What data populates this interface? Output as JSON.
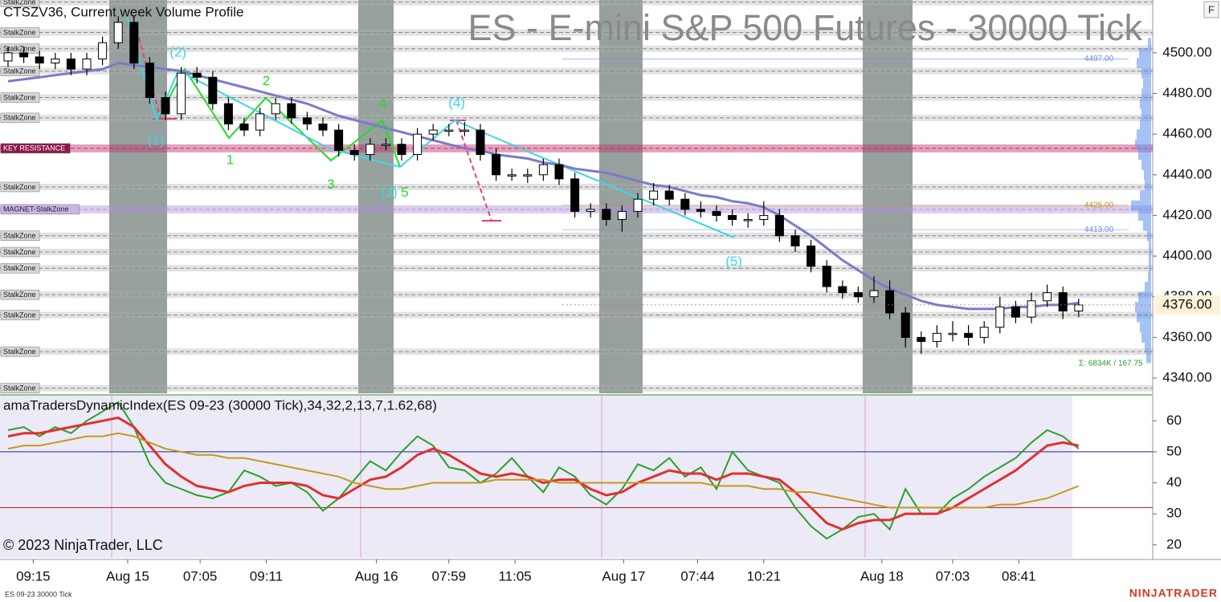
{
  "chart_data": [
    {
      "type": "candlestick",
      "title": "ES - E-mini S&P 500 Futures - 30000 Tick",
      "subtitle": "CTSZV36, Current week Volume Profile",
      "open": [
        4496,
        4500,
        4498,
        4495,
        4497,
        4492,
        4497,
        4505,
        4515,
        4495,
        4478,
        4470,
        4490,
        4488,
        4475,
        4465,
        4462,
        4470,
        4475,
        4468,
        4465,
        4462,
        4452,
        4450,
        4455,
        4455,
        4450,
        4460,
        4462,
        4462,
        4462,
        4450,
        4440,
        4440,
        4440,
        4445,
        4438,
        4422,
        4423,
        4418,
        4422,
        4428,
        4432,
        4428,
        4423,
        4422,
        4420,
        4418,
        4418,
        4420,
        4410,
        4405,
        4395,
        4385,
        4382,
        4380,
        4383,
        4372,
        4360,
        4358,
        4362,
        4362,
        4360,
        4365,
        4375,
        4370,
        4378,
        4382,
        4373
      ],
      "high": [
        4503,
        4503,
        4501,
        4500,
        4500,
        4500,
        4508,
        4518,
        4518,
        4498,
        4481,
        4493,
        4493,
        4491,
        4478,
        4468,
        4473,
        4478,
        4478,
        4471,
        4468,
        4465,
        4455,
        4458,
        4458,
        4458,
        4463,
        4465,
        4465,
        4466,
        4465,
        4453,
        4443,
        4443,
        4448,
        4448,
        4441,
        4426,
        4426,
        4425,
        4431,
        4436,
        4435,
        4431,
        4427,
        4425,
        4423,
        4421,
        4427,
        4423,
        4413,
        4408,
        4398,
        4388,
        4385,
        4390,
        4388,
        4375,
        4363,
        4366,
        4368,
        4366,
        4368,
        4380,
        4378,
        4382,
        4386,
        4385,
        4379
      ],
      "low": [
        4493,
        4495,
        4492,
        4492,
        4489,
        4489,
        4494,
        4502,
        4492,
        4475,
        4467,
        4467,
        4485,
        4472,
        4462,
        4459,
        4459,
        4467,
        4465,
        4462,
        4459,
        4449,
        4447,
        4447,
        4452,
        4447,
        4447,
        4457,
        4459,
        4459,
        4447,
        4437,
        4437,
        4436,
        4437,
        4435,
        4419,
        4419,
        4415,
        4412,
        4419,
        4425,
        4425,
        4420,
        4419,
        4417,
        4415,
        4414,
        4415,
        4407,
        4402,
        4392,
        4382,
        4379,
        4377,
        4377,
        4369,
        4355,
        4352,
        4355,
        4358,
        4356,
        4357,
        4362,
        4367,
        4367,
        4375,
        4369,
        4370
      ],
      "close": [
        4500,
        4498,
        4495,
        4497,
        4492,
        4497,
        4505,
        4515,
        4495,
        4478,
        4470,
        4490,
        4488,
        4475,
        4465,
        4462,
        4470,
        4475,
        4468,
        4465,
        4462,
        4452,
        4450,
        4455,
        4455,
        4450,
        4460,
        4462,
        4462,
        4462,
        4450,
        4440,
        4440,
        4440,
        4445,
        4438,
        4422,
        4423,
        4418,
        4422,
        4428,
        4432,
        4428,
        4423,
        4422,
        4420,
        4418,
        4418,
        4420,
        4410,
        4405,
        4395,
        4385,
        4382,
        4380,
        4383,
        4372,
        4360,
        4358,
        4362,
        4362,
        4360,
        4365,
        4375,
        4370,
        4378,
        4382,
        4373,
        4376
      ],
      "up_color": "#ffffff",
      "down_color": "#000000",
      "ma": {
        "color": "#7b7bc8",
        "values": [
          4486,
          4487,
          4488,
          4489,
          4490,
          4491,
          4492,
          4495,
          4494,
          4493,
          4492,
          4491,
          4489,
          4487,
          4485,
          4483,
          4481,
          4479,
          4477,
          4475,
          4472,
          4469,
          4467,
          4465,
          4463,
          4461,
          4459,
          4457,
          4455,
          4453,
          4452,
          4450,
          4449,
          4448,
          4446,
          4445,
          4443,
          4442,
          4441,
          4439,
          4437,
          4435,
          4434,
          4432,
          4430,
          4429,
          4427,
          4426,
          4424,
          4420,
          4415,
          4410,
          4404,
          4398,
          4393,
          4388,
          4384,
          4381,
          4378,
          4376,
          4375,
          4374,
          4374,
          4374,
          4375,
          4375,
          4376,
          4376,
          4377
        ]
      },
      "ylim": [
        4332.5,
        4526
      ],
      "yticks": [
        {
          "value": 4340,
          "label": "4340.00"
        },
        {
          "value": 4360,
          "label": "4360.00"
        },
        {
          "value": 4380,
          "label": "4380.00"
        },
        {
          "value": 4400,
          "label": "4400.00"
        },
        {
          "value": 4420,
          "label": "4420.00"
        },
        {
          "value": 4440,
          "label": "4440.00"
        },
        {
          "value": 4460,
          "label": "4460.00"
        },
        {
          "value": 4480,
          "label": "4480.00"
        },
        {
          "value": 4500,
          "label": "4500.00"
        }
      ],
      "xticks": [
        {
          "value": 1.6,
          "label": "09:15"
        },
        {
          "value": 7.6,
          "label": "Aug 15"
        },
        {
          "value": 12.2,
          "label": "07:05"
        },
        {
          "value": 16.4,
          "label": "09:11"
        },
        {
          "value": 23.4,
          "label": "Aug 16"
        },
        {
          "value": 28,
          "label": "07:59"
        },
        {
          "value": 32.2,
          "label": "11:05"
        },
        {
          "value": 39.1,
          "label": "Aug 17"
        },
        {
          "value": 43.8,
          "label": "07:44"
        },
        {
          "value": 48,
          "label": "10:21"
        },
        {
          "value": 55.5,
          "label": "Aug 18"
        },
        {
          "value": 60,
          "label": "07:03"
        },
        {
          "value": 64.2,
          "label": "08:41"
        }
      ],
      "zones": [
        {
          "label": "StalkZone",
          "value": 4525,
          "color": "#b0b0b0"
        },
        {
          "label": "StalkZone",
          "value": 4510,
          "color": "#b0b0b0"
        },
        {
          "label": "StalkZone",
          "value": 4502,
          "color": "#b0b0b0"
        },
        {
          "label": "StalkZone",
          "value": 4491,
          "color": "#b0b0b0"
        },
        {
          "label": "StalkZone",
          "value": 4478,
          "color": "#b0b0b0"
        },
        {
          "label": "StalkZone",
          "value": 4468,
          "color": "#b0b0b0"
        },
        {
          "label": "KEY RESISTANCE",
          "value": 4453,
          "color": "#c0306a"
        },
        {
          "label": "StalkZone",
          "value": 4434,
          "color": "#b0b0b0"
        },
        {
          "label": "MAGNET-StalkZone",
          "value": 4423,
          "color": "#b090d8"
        },
        {
          "label": "StalkZone",
          "value": 4410,
          "color": "#b0b0b0"
        },
        {
          "label": "StalkZone",
          "value": 4402,
          "color": "#b0b0b0"
        },
        {
          "label": "StalkZone",
          "value": 4394,
          "color": "#b0b0b0"
        },
        {
          "label": "StalkZone",
          "value": 4381,
          "color": "#b0b0b0"
        },
        {
          "label": "StalkZone",
          "value": 4371,
          "color": "#b0b0b0"
        },
        {
          "label": "StalkZone",
          "value": 4353,
          "color": "#b0b0b0"
        },
        {
          "label": "StalkZone",
          "value": 4335,
          "color": "#b0b0b0"
        }
      ],
      "annotations": [
        {
          "text": "(1)",
          "x": 9.4,
          "y": 4456.5,
          "color": "#3cd6e6"
        },
        {
          "text": "(2)",
          "x": 10.8,
          "y": 4500,
          "color": "#3cd6e6"
        },
        {
          "text": "1",
          "x": 14.1,
          "y": 4447,
          "color": "#22dd22"
        },
        {
          "text": "2",
          "x": 16.4,
          "y": 4486,
          "color": "#22dd22"
        },
        {
          "text": "3",
          "x": 20.5,
          "y": 4435,
          "color": "#22dd22"
        },
        {
          "text": "4",
          "x": 23.8,
          "y": 4475,
          "color": "#22dd22"
        },
        {
          "text": "(3)",
          "x": 24.2,
          "y": 4431,
          "color": "#3cd6e6"
        },
        {
          "text": "5",
          "x": 25.2,
          "y": 4431,
          "color": "#22dd22"
        },
        {
          "text": "(4)",
          "x": 28.5,
          "y": 4475,
          "color": "#3cd6e6"
        },
        {
          "text": "(5)",
          "x": 46.1,
          "y": 4397,
          "color": "#3cd6e6"
        }
      ],
      "last_price": {
        "value": 4376,
        "label": "4376.00"
      },
      "profile": {
        "color": "#5b8ff0",
        "prices": [
          4350,
          4355,
          4360,
          4365,
          4370,
          4375,
          4380,
          4385,
          4390,
          4395,
          4400,
          4405,
          4410,
          4415,
          4420,
          4425,
          4430,
          4435,
          4440,
          4445,
          4450,
          4455,
          4460,
          4465,
          4470,
          4475,
          4480,
          4485,
          4490,
          4495,
          4500,
          4505
        ],
        "volumes": [
          6,
          8,
          12,
          14,
          18,
          20,
          16,
          8,
          4,
          3,
          3,
          3,
          5,
          10,
          16,
          25,
          14,
          8,
          9,
          12,
          16,
          20,
          18,
          14,
          12,
          14,
          12,
          10,
          12,
          18,
          15,
          4
        ]
      },
      "profile_labels": [
        {
          "value": 4497,
          "label": "4497.00",
          "color": "#6a8ee8"
        },
        {
          "value": 4425,
          "label": "4425.00",
          "color": "#c89020"
        },
        {
          "value": 4413,
          "label": "4413.00",
          "color": "#6a8ee8"
        }
      ],
      "volume_sum": "Σ: 6834K / 167.75"
    },
    {
      "type": "line",
      "title": "amaTradersDynamicIndex(ES 09-23 (30000 Tick),34,32,2,13,7,1.62,68)",
      "series": [
        {
          "color": "#2aa02a",
          "values": [
            57,
            58,
            55,
            58,
            56,
            60,
            63,
            66,
            58,
            46,
            40,
            38,
            36,
            35,
            37,
            44,
            42,
            39,
            40,
            37,
            31,
            35,
            41,
            47,
            44,
            50,
            55,
            52,
            45,
            44,
            40,
            43,
            48,
            42,
            37,
            45,
            42,
            36,
            33,
            38,
            46,
            44,
            48,
            42,
            45,
            38,
            50,
            44,
            42,
            40,
            32,
            26,
            22,
            25,
            29,
            30,
            25,
            38,
            30,
            30,
            35,
            38,
            42,
            45,
            48,
            53,
            57,
            55,
            51
          ]
        },
        {
          "color": "#e03030",
          "values": [
            55,
            56,
            56,
            57,
            58,
            59,
            60,
            61,
            58,
            52,
            46,
            42,
            39,
            38,
            37,
            39,
            40,
            40,
            40,
            39,
            36,
            35,
            38,
            41,
            42,
            45,
            49,
            51,
            49,
            46,
            43,
            42,
            43,
            42,
            40,
            41,
            41,
            38,
            36,
            37,
            40,
            42,
            44,
            43,
            43,
            41,
            43,
            43,
            42,
            41,
            37,
            32,
            27,
            25,
            27,
            28,
            28,
            30,
            30,
            30,
            32,
            35,
            38,
            41,
            44,
            48,
            52,
            53,
            52
          ]
        },
        {
          "color": "#c8961e",
          "values": [
            51,
            52,
            52,
            53,
            54,
            55,
            55,
            56,
            55,
            53,
            51,
            50,
            49,
            49,
            48,
            48,
            47,
            46,
            45,
            44,
            43,
            42,
            40,
            39,
            38,
            38,
            39,
            40,
            40,
            40,
            40,
            41,
            41,
            41,
            41,
            40,
            40,
            40,
            40,
            40,
            40,
            40,
            40,
            40,
            40,
            39,
            39,
            39,
            38,
            38,
            37,
            37,
            36,
            35,
            34,
            33,
            32,
            32,
            32,
            32,
            32,
            32,
            32,
            33,
            33,
            34,
            35,
            37,
            39
          ]
        }
      ],
      "levels": [
        {
          "value": 50,
          "color": "#2020a0"
        },
        {
          "value": 32,
          "color": "#a02020"
        }
      ],
      "ylim": [
        15.8,
        68.1
      ],
      "yticks": [
        20,
        30,
        40,
        50,
        60
      ]
    }
  ],
  "copyright": "© 2023 NinjaTrader, LLC",
  "instrument": "ES 09-23 30000 Tick",
  "brand": "NINJATRADER",
  "button": "F"
}
